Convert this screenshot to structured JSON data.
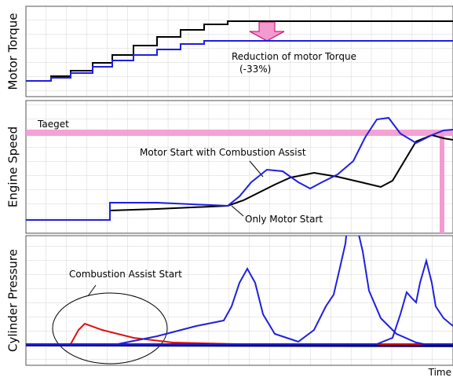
{
  "chart_data": [
    {
      "type": "line",
      "ylabel": "Motor Torque",
      "xlim": [
        0,
        544
      ],
      "ylim": [
        0,
        115
      ],
      "annotations": [
        "Reduction of motor Torque",
        "(-33%)"
      ],
      "series": [
        {
          "color": "#000000",
          "x": [
            0,
            32,
            32,
            57,
            57,
            85,
            85,
            110,
            110,
            137,
            137,
            167,
            167,
            197,
            197,
            227,
            227,
            257,
            257,
            544
          ],
          "values": [
            20,
            20,
            26,
            26,
            33,
            33,
            43,
            43,
            53,
            53,
            65,
            65,
            76,
            76,
            85,
            85,
            92,
            92,
            96,
            96
          ]
        },
        {
          "color": "#1f1fe0",
          "x": [
            0,
            32,
            32,
            57,
            57,
            85,
            85,
            110,
            110,
            137,
            137,
            167,
            167,
            197,
            197,
            227,
            227,
            257,
            257,
            544
          ],
          "values": [
            20,
            20,
            24,
            24,
            30,
            30,
            38,
            38,
            46,
            46,
            53,
            53,
            60,
            60,
            67,
            67,
            71,
            71,
            71,
            71
          ]
        }
      ]
    },
    {
      "type": "line",
      "ylabel": "Engine Speed",
      "xlim": [
        0,
        544
      ],
      "ylim": [
        0,
        169
      ],
      "target": {
        "label": "Taeget",
        "value": 128,
        "x": 530
      },
      "annotations": [
        "Motor Start with Combustion Assist",
        "Only Motor Start"
      ],
      "series": [
        {
          "color": "#000000",
          "x": [
            0,
            107,
            107,
            167,
            257,
            277,
            297,
            317,
            337,
            367,
            397,
            427,
            452,
            467,
            482,
            497,
            517,
            532,
            544
          ],
          "values": [
            17,
            17,
            29,
            31,
            35,
            42,
            52,
            62,
            71,
            77,
            72,
            65,
            59,
            67,
            92,
            117,
            125,
            121,
            119
          ]
        },
        {
          "color": "#1f1fe0",
          "x": [
            0,
            107,
            107,
            167,
            257,
            272,
            287,
            307,
            327,
            347,
            362,
            377,
            397,
            417,
            432,
            447,
            462,
            477,
            497,
            517,
            532,
            544
          ],
          "values": [
            17,
            17,
            39,
            39,
            35,
            47,
            65,
            81,
            79,
            65,
            57,
            65,
            75,
            92,
            122,
            145,
            147,
            127,
            115,
            125,
            131,
            132
          ]
        }
      ]
    },
    {
      "type": "line",
      "ylabel": "Cylinder Pressure",
      "xlabel": "Time",
      "xlim": [
        0,
        544
      ],
      "ylim": [
        0,
        165
      ],
      "annotations": [
        "Combustion Assist Start"
      ],
      "series": [
        {
          "color": "#000000",
          "x": [
            0,
            544
          ],
          "values": [
            26,
            26
          ]
        },
        {
          "color": "#1a1a70",
          "x": [
            0,
            544
          ],
          "values": [
            25,
            24
          ]
        },
        {
          "color": "#e01010",
          "x": [
            0,
            57,
            67,
            75,
            97,
            137,
            187,
            267,
            544
          ],
          "values": [
            27,
            27,
            45,
            53,
            45,
            35,
            29,
            27,
            27
          ]
        },
        {
          "color": "#1f1fe0",
          "x": [
            0,
            117,
            167,
            217,
            252,
            262,
            272,
            282,
            292,
            302,
            317,
            347,
            367,
            382,
            392,
            399,
            407,
            409,
            422,
            429,
            437,
            452,
            472,
            497,
            507,
            544
          ],
          "values": [
            27,
            27,
            37,
            50,
            57,
            75,
            105,
            123,
            105,
            65,
            40,
            30,
            45,
            75,
            90,
            120,
            155,
            175,
            175,
            145,
            95,
            60,
            40,
            29,
            27,
            27
          ]
        },
        {
          "color": "#1f1fe0",
          "x": [
            0,
            447,
            467,
            477,
            485,
            492,
            497,
            502,
            510,
            517,
            522,
            532,
            544
          ],
          "values": [
            27,
            27,
            35,
            65,
            93,
            85,
            80,
            105,
            133,
            105,
            75,
            60,
            50
          ]
        }
      ]
    }
  ]
}
